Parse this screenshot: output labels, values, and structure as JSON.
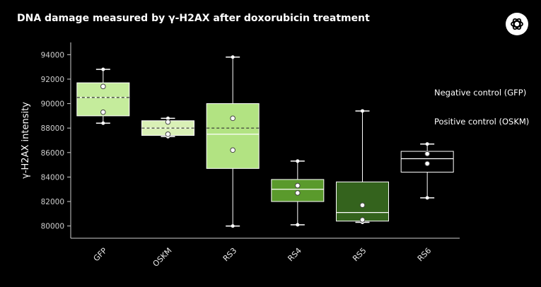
{
  "chart_data": {
    "type": "box",
    "title": "DNA damage measured by γ-H2AX after doxorubicin treatment",
    "ylabel": "γ-H2AX intensity",
    "xlabel": "",
    "ylim": [
      79000,
      95000
    ],
    "yticks": [
      80000,
      82000,
      84000,
      86000,
      88000,
      90000,
      92000,
      94000
    ],
    "categories": [
      "GFP",
      "OSKM",
      "RS3",
      "RS4",
      "RS5",
      "RS6"
    ],
    "boxes": [
      {
        "category": "GFP",
        "whisker_low": 88400,
        "q1": 89000,
        "median": 90500,
        "q3": 91700,
        "whisker_high": 92800,
        "mean": 90500,
        "points": [
          89300,
          91400
        ],
        "color": "#c5ec9c"
      },
      {
        "category": "OSKM",
        "whisker_low": 87300,
        "q1": 87400,
        "median": 88000,
        "q3": 88600,
        "whisker_high": 88800,
        "mean": 88000,
        "points": [
          87500,
          88500
        ],
        "color": "#d9f0b6"
      },
      {
        "category": "RS3",
        "whisker_low": 80000,
        "q1": 84700,
        "median": 87500,
        "q3": 90000,
        "whisker_high": 93800,
        "mean": 88000,
        "points": [
          86200,
          88800
        ],
        "color": "#b2e382"
      },
      {
        "category": "RS4",
        "whisker_low": 80100,
        "q1": 82000,
        "median": 83000,
        "q3": 83800,
        "whisker_high": 85300,
        "mean": null,
        "points": [
          82700,
          83300
        ],
        "color": "#5a9a2c"
      },
      {
        "category": "RS5",
        "whisker_low": 80300,
        "q1": 80400,
        "median": 81100,
        "q3": 83600,
        "whisker_high": 89400,
        "mean": null,
        "points": [
          80500,
          81700
        ],
        "color": "#34631d"
      },
      {
        "category": "RS6",
        "whisker_low": 82300,
        "q1": 84400,
        "median": 85500,
        "q3": 86100,
        "whisker_high": 86700,
        "mean": null,
        "points": [
          85100,
          85900
        ],
        "color": "#000000"
      }
    ],
    "legend": [
      "Negative control (GFP)",
      "Positive control (OSKM)"
    ],
    "legend_placement": "right",
    "grid": false
  },
  "colors": {
    "background": "#000000",
    "text": "#ffffff",
    "axis": "#cccccc",
    "median_line": "#ffffff",
    "mean_line": "#333333"
  },
  "header": {
    "logo_icon": "openai-logo-icon"
  }
}
